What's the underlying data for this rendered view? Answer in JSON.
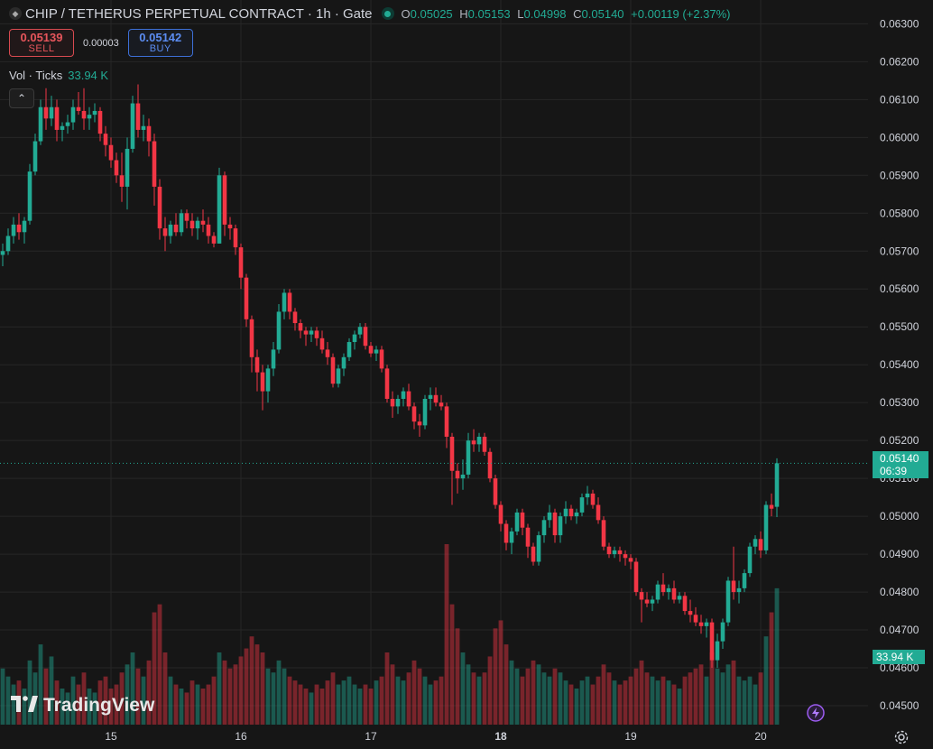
{
  "header": {
    "title": "CHIP / TETHERUS PERPETUAL CONTRACT · 1h · Gate",
    "open_label": "O",
    "open": "0.05025",
    "high_label": "H",
    "high": "0.05153",
    "low_label": "L",
    "low": "0.04998",
    "close_label": "C",
    "close": "0.05140",
    "change": "+0.00119 (+2.37%)"
  },
  "trade": {
    "sell_price": "0.05139",
    "sell_label": "SELL",
    "spread": "0.00003",
    "buy_price": "0.05142",
    "buy_label": "BUY"
  },
  "volume_legend": {
    "label": "Vol · Ticks",
    "value": "33.94 K"
  },
  "watermark": "TradingView",
  "last_price": {
    "price": "0.05140",
    "countdown": "06:39"
  },
  "volume_tag": "33.94 K",
  "colors": {
    "up": "#22ab94",
    "down": "#f23645",
    "background": "#161616",
    "grid": "#262626"
  },
  "chart_data": {
    "type": "candlestick",
    "interval": "1h",
    "y_ticks": [
      "0.04500",
      "0.04600",
      "0.04700",
      "0.04800",
      "0.04900",
      "0.05000",
      "0.05100",
      "0.05200",
      "0.05300",
      "0.05400",
      "0.05500",
      "0.05600",
      "0.05700",
      "0.05800",
      "0.05900",
      "0.06000",
      "0.06100",
      "0.06200",
      "0.06300"
    ],
    "ylim": [
      0.0445,
      0.0632
    ],
    "x_ticks": [
      "15",
      "16",
      "17",
      "18",
      "19",
      "20"
    ],
    "x_tick_index": [
      20,
      44,
      68,
      92,
      116,
      140
    ],
    "bold_tick": "18",
    "last_price": 0.0514,
    "volume_unit": "K",
    "volume_max": 45,
    "candles": [
      [
        0.0569,
        0.0572,
        0.0566,
        0.057,
        14
      ],
      [
        0.057,
        0.0576,
        0.0569,
        0.0574,
        12
      ],
      [
        0.0574,
        0.0579,
        0.0572,
        0.0577,
        10
      ],
      [
        0.0577,
        0.058,
        0.0573,
        0.0575,
        11
      ],
      [
        0.0575,
        0.0579,
        0.0572,
        0.0578,
        9
      ],
      [
        0.0578,
        0.0593,
        0.0577,
        0.0591,
        16
      ],
      [
        0.0591,
        0.0601,
        0.059,
        0.0599,
        13
      ],
      [
        0.0599,
        0.061,
        0.0598,
        0.0608,
        20
      ],
      [
        0.0608,
        0.0613,
        0.0602,
        0.0605,
        14
      ],
      [
        0.0605,
        0.0611,
        0.0603,
        0.0608,
        17
      ],
      [
        0.0608,
        0.061,
        0.0599,
        0.0602,
        11
      ],
      [
        0.0602,
        0.0604,
        0.0599,
        0.0603,
        9
      ],
      [
        0.0603,
        0.0606,
        0.0601,
        0.0604,
        8
      ],
      [
        0.0604,
        0.061,
        0.0602,
        0.0608,
        12
      ],
      [
        0.0608,
        0.0612,
        0.0606,
        0.0607,
        10
      ],
      [
        0.0607,
        0.0613,
        0.0602,
        0.0605,
        13
      ],
      [
        0.0605,
        0.0608,
        0.0602,
        0.0606,
        9
      ],
      [
        0.0606,
        0.0609,
        0.0604,
        0.0607,
        8
      ],
      [
        0.0607,
        0.0608,
        0.0599,
        0.0601,
        11
      ],
      [
        0.0601,
        0.0603,
        0.0595,
        0.0598,
        12
      ],
      [
        0.0598,
        0.06,
        0.0592,
        0.0594,
        9
      ],
      [
        0.0594,
        0.0596,
        0.0588,
        0.059,
        10
      ],
      [
        0.059,
        0.0596,
        0.0583,
        0.0587,
        13
      ],
      [
        0.0587,
        0.06,
        0.0581,
        0.0597,
        15
      ],
      [
        0.0597,
        0.0611,
        0.0596,
        0.0609,
        18
      ],
      [
        0.0609,
        0.0614,
        0.06,
        0.0602,
        14
      ],
      [
        0.0602,
        0.0606,
        0.0599,
        0.0603,
        12
      ],
      [
        0.0603,
        0.0605,
        0.0595,
        0.0599,
        16
      ],
      [
        0.0599,
        0.0601,
        0.0582,
        0.0587,
        28
      ],
      [
        0.0587,
        0.0589,
        0.0573,
        0.0576,
        30
      ],
      [
        0.0576,
        0.0579,
        0.057,
        0.0574,
        18
      ],
      [
        0.0574,
        0.0578,
        0.0572,
        0.0577,
        12
      ],
      [
        0.0577,
        0.058,
        0.0574,
        0.0575,
        10
      ],
      [
        0.0575,
        0.0581,
        0.0574,
        0.058,
        9
      ],
      [
        0.058,
        0.0581,
        0.0576,
        0.0578,
        8
      ],
      [
        0.0578,
        0.058,
        0.0574,
        0.0576,
        11
      ],
      [
        0.0576,
        0.0579,
        0.0573,
        0.0578,
        10
      ],
      [
        0.0578,
        0.0581,
        0.0575,
        0.0577,
        9
      ],
      [
        0.0577,
        0.0579,
        0.0572,
        0.0574,
        10
      ],
      [
        0.0574,
        0.0575,
        0.0571,
        0.0572,
        12
      ],
      [
        0.0572,
        0.0592,
        0.0572,
        0.059,
        18
      ],
      [
        0.059,
        0.0591,
        0.0574,
        0.0577,
        16
      ],
      [
        0.0577,
        0.0579,
        0.0573,
        0.0576,
        14
      ],
      [
        0.0576,
        0.0577,
        0.0569,
        0.0571,
        15
      ],
      [
        0.0571,
        0.0572,
        0.056,
        0.0563,
        17
      ],
      [
        0.0563,
        0.0564,
        0.055,
        0.0552,
        19
      ],
      [
        0.0552,
        0.0553,
        0.0538,
        0.0542,
        22
      ],
      [
        0.0542,
        0.0544,
        0.0533,
        0.0538,
        20
      ],
      [
        0.0538,
        0.054,
        0.0528,
        0.0533,
        18
      ],
      [
        0.0533,
        0.054,
        0.053,
        0.0539,
        14
      ],
      [
        0.0539,
        0.0546,
        0.0537,
        0.0544,
        13
      ],
      [
        0.0544,
        0.0556,
        0.0543,
        0.0554,
        16
      ],
      [
        0.0554,
        0.056,
        0.0552,
        0.0559,
        14
      ],
      [
        0.0559,
        0.056,
        0.0552,
        0.0554,
        12
      ],
      [
        0.0554,
        0.0555,
        0.0549,
        0.0551,
        11
      ],
      [
        0.0551,
        0.0552,
        0.0547,
        0.0549,
        10
      ],
      [
        0.0549,
        0.055,
        0.0545,
        0.0548,
        9
      ],
      [
        0.0548,
        0.055,
        0.0546,
        0.0549,
        8
      ],
      [
        0.0549,
        0.055,
        0.0545,
        0.0547,
        10
      ],
      [
        0.0547,
        0.0549,
        0.0543,
        0.0544,
        9
      ],
      [
        0.0544,
        0.0546,
        0.054,
        0.0542,
        11
      ],
      [
        0.0542,
        0.0543,
        0.0534,
        0.0535,
        13
      ],
      [
        0.0535,
        0.054,
        0.0534,
        0.0539,
        10
      ],
      [
        0.0539,
        0.0543,
        0.0537,
        0.0542,
        11
      ],
      [
        0.0542,
        0.0547,
        0.0541,
        0.0546,
        12
      ],
      [
        0.0546,
        0.0549,
        0.0544,
        0.0548,
        10
      ],
      [
        0.0548,
        0.0551,
        0.0547,
        0.055,
        9
      ],
      [
        0.055,
        0.0551,
        0.0544,
        0.0545,
        10
      ],
      [
        0.0545,
        0.0546,
        0.0542,
        0.0543,
        9
      ],
      [
        0.0543,
        0.0545,
        0.0541,
        0.0544,
        11
      ],
      [
        0.0544,
        0.0545,
        0.0538,
        0.0539,
        12
      ],
      [
        0.0539,
        0.054,
        0.053,
        0.0531,
        18
      ],
      [
        0.0531,
        0.0533,
        0.0526,
        0.0529,
        15
      ],
      [
        0.0529,
        0.0532,
        0.0527,
        0.0531,
        12
      ],
      [
        0.0531,
        0.0534,
        0.0529,
        0.0533,
        11
      ],
      [
        0.0533,
        0.0535,
        0.0528,
        0.0529,
        13
      ],
      [
        0.0529,
        0.053,
        0.0523,
        0.0525,
        16
      ],
      [
        0.0525,
        0.0527,
        0.0521,
        0.0524,
        14
      ],
      [
        0.0524,
        0.0532,
        0.0523,
        0.0531,
        12
      ],
      [
        0.0531,
        0.0534,
        0.0528,
        0.0532,
        10
      ],
      [
        0.0532,
        0.0534,
        0.0529,
        0.053,
        11
      ],
      [
        0.053,
        0.0532,
        0.0528,
        0.0529,
        12
      ],
      [
        0.0529,
        0.053,
        0.0518,
        0.0521,
        45
      ],
      [
        0.0521,
        0.0522,
        0.0503,
        0.0512,
        30
      ],
      [
        0.0512,
        0.0514,
        0.0506,
        0.051,
        24
      ],
      [
        0.051,
        0.0515,
        0.0507,
        0.0511,
        18
      ],
      [
        0.0511,
        0.0522,
        0.051,
        0.052,
        15
      ],
      [
        0.052,
        0.0523,
        0.0517,
        0.0519,
        13
      ],
      [
        0.0519,
        0.0522,
        0.0517,
        0.0521,
        12
      ],
      [
        0.0521,
        0.0522,
        0.0516,
        0.0517,
        13
      ],
      [
        0.0517,
        0.0518,
        0.0509,
        0.051,
        17
      ],
      [
        0.051,
        0.0511,
        0.0502,
        0.0503,
        24
      ],
      [
        0.0503,
        0.0504,
        0.0496,
        0.0498,
        26
      ],
      [
        0.0498,
        0.0499,
        0.0491,
        0.0493,
        20
      ],
      [
        0.0493,
        0.0497,
        0.049,
        0.0496,
        16
      ],
      [
        0.0496,
        0.0502,
        0.0495,
        0.0501,
        14
      ],
      [
        0.0501,
        0.0502,
        0.0495,
        0.0497,
        12
      ],
      [
        0.0497,
        0.0498,
        0.0489,
        0.0492,
        14
      ],
      [
        0.0492,
        0.0493,
        0.0487,
        0.0488,
        16
      ],
      [
        0.0488,
        0.0496,
        0.0487,
        0.0495,
        15
      ],
      [
        0.0495,
        0.05,
        0.0493,
        0.0499,
        13
      ],
      [
        0.0499,
        0.0503,
        0.0497,
        0.0501,
        12
      ],
      [
        0.0501,
        0.0502,
        0.0493,
        0.0495,
        14
      ],
      [
        0.0495,
        0.0501,
        0.0493,
        0.05,
        13
      ],
      [
        0.05,
        0.0504,
        0.0498,
        0.0502,
        11
      ],
      [
        0.0502,
        0.0503,
        0.0499,
        0.05,
        10
      ],
      [
        0.05,
        0.0502,
        0.0498,
        0.0501,
        9
      ],
      [
        0.0501,
        0.0506,
        0.05,
        0.0505,
        11
      ],
      [
        0.0505,
        0.0508,
        0.0503,
        0.0506,
        12
      ],
      [
        0.0506,
        0.0507,
        0.0502,
        0.0503,
        10
      ],
      [
        0.0503,
        0.0505,
        0.0498,
        0.0499,
        12
      ],
      [
        0.0499,
        0.05,
        0.0491,
        0.0492,
        15
      ],
      [
        0.0492,
        0.0493,
        0.0489,
        0.049,
        13
      ],
      [
        0.049,
        0.0492,
        0.0489,
        0.0491,
        11
      ],
      [
        0.0491,
        0.0492,
        0.0488,
        0.049,
        10
      ],
      [
        0.049,
        0.0491,
        0.0487,
        0.0489,
        11
      ],
      [
        0.0489,
        0.049,
        0.0486,
        0.0488,
        12
      ],
      [
        0.0488,
        0.0489,
        0.0479,
        0.048,
        14
      ],
      [
        0.048,
        0.0481,
        0.0472,
        0.0478,
        16
      ],
      [
        0.0478,
        0.048,
        0.0476,
        0.0477,
        13
      ],
      [
        0.0477,
        0.0479,
        0.0475,
        0.0478,
        12
      ],
      [
        0.0478,
        0.0483,
        0.0477,
        0.0482,
        11
      ],
      [
        0.0482,
        0.0485,
        0.0479,
        0.048,
        12
      ],
      [
        0.048,
        0.0482,
        0.0478,
        0.0481,
        11
      ],
      [
        0.0481,
        0.0483,
        0.0477,
        0.0478,
        10
      ],
      [
        0.0478,
        0.048,
        0.0477,
        0.0479,
        9
      ],
      [
        0.0479,
        0.048,
        0.0474,
        0.0475,
        12
      ],
      [
        0.0475,
        0.0478,
        0.0472,
        0.0474,
        13
      ],
      [
        0.0474,
        0.0476,
        0.0471,
        0.0472,
        14
      ],
      [
        0.0472,
        0.0474,
        0.0469,
        0.0471,
        15
      ],
      [
        0.0471,
        0.0473,
        0.0468,
        0.0472,
        12
      ],
      [
        0.0472,
        0.0473,
        0.046,
        0.0462,
        18
      ],
      [
        0.0462,
        0.0469,
        0.046,
        0.0467,
        14
      ],
      [
        0.0467,
        0.0473,
        0.0465,
        0.0472,
        13
      ],
      [
        0.0472,
        0.0484,
        0.0471,
        0.0483,
        15
      ],
      [
        0.0483,
        0.0492,
        0.0478,
        0.048,
        16
      ],
      [
        0.048,
        0.0483,
        0.0477,
        0.0481,
        12
      ],
      [
        0.0481,
        0.0486,
        0.048,
        0.0485,
        11
      ],
      [
        0.0485,
        0.0493,
        0.0484,
        0.0492,
        12
      ],
      [
        0.0492,
        0.0495,
        0.049,
        0.0494,
        10
      ],
      [
        0.0494,
        0.0496,
        0.0489,
        0.0491,
        13
      ],
      [
        0.0491,
        0.0504,
        0.049,
        0.0503,
        22
      ],
      [
        0.0503,
        0.0506,
        0.05,
        0.0502,
        28
      ],
      [
        0.05025,
        0.05153,
        0.04998,
        0.0514,
        34
      ]
    ]
  }
}
